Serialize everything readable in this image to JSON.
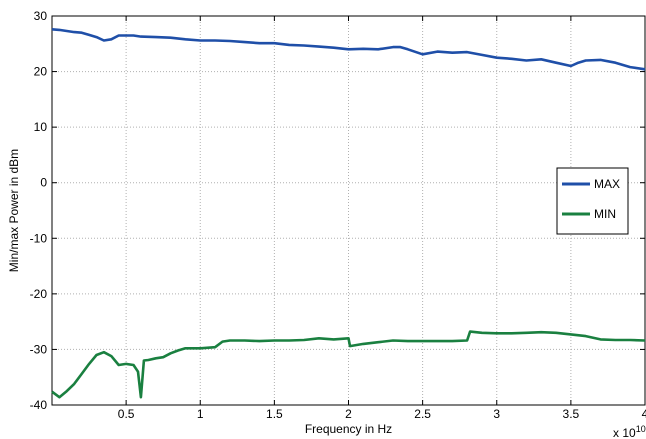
{
  "chart_data": {
    "type": "line",
    "xlabel": "Frequency in Hz",
    "ylabel": "Min/max Power in dBm",
    "x_exponent_label": "x 10",
    "x_exponent_power": "10",
    "xlim": [
      0,
      4
    ],
    "ylim": [
      -40,
      30
    ],
    "xticks": [
      0.5,
      1,
      1.5,
      2,
      2.5,
      3,
      3.5,
      4
    ],
    "xtick_labels": [
      "0.5",
      "1",
      "1.5",
      "2",
      "2.5",
      "3",
      "3.5",
      "4"
    ],
    "yticks": [
      -40,
      -30,
      -20,
      -10,
      0,
      10,
      20,
      30
    ],
    "ytick_labels": [
      "-40",
      "-30",
      "-20",
      "-10",
      "0",
      "10",
      "20",
      "30"
    ],
    "grid": true,
    "legend_position": "right",
    "series": [
      {
        "name": "MAX",
        "color": "#1f4fa8",
        "x": [
          0.0,
          0.05,
          0.1,
          0.15,
          0.2,
          0.25,
          0.3,
          0.35,
          0.4,
          0.45,
          0.5,
          0.55,
          0.6,
          0.7,
          0.8,
          0.9,
          1.0,
          1.1,
          1.2,
          1.3,
          1.4,
          1.5,
          1.6,
          1.7,
          1.8,
          1.9,
          2.0,
          2.1,
          2.2,
          2.3,
          2.35,
          2.4,
          2.5,
          2.6,
          2.7,
          2.8,
          2.9,
          3.0,
          3.1,
          3.2,
          3.3,
          3.4,
          3.5,
          3.55,
          3.6,
          3.7,
          3.8,
          3.9,
          4.0
        ],
        "y": [
          27.6,
          27.5,
          27.3,
          27.1,
          27.0,
          26.6,
          26.2,
          25.6,
          25.8,
          26.5,
          26.5,
          26.5,
          26.3,
          26.2,
          26.1,
          25.8,
          25.6,
          25.6,
          25.5,
          25.3,
          25.1,
          25.1,
          24.8,
          24.7,
          24.5,
          24.3,
          24.0,
          24.1,
          24.0,
          24.4,
          24.4,
          24.0,
          23.1,
          23.6,
          23.4,
          23.5,
          23.0,
          22.5,
          22.3,
          22.0,
          22.2,
          21.6,
          21.0,
          21.6,
          22.0,
          22.1,
          21.6,
          20.8,
          20.4
        ]
      },
      {
        "name": "MIN",
        "color": "#1a8040",
        "x": [
          0.0,
          0.05,
          0.1,
          0.15,
          0.2,
          0.25,
          0.3,
          0.35,
          0.4,
          0.45,
          0.5,
          0.55,
          0.58,
          0.6,
          0.62,
          0.65,
          0.7,
          0.75,
          0.8,
          0.85,
          0.9,
          1.0,
          1.1,
          1.15,
          1.2,
          1.3,
          1.4,
          1.5,
          1.6,
          1.7,
          1.8,
          1.9,
          2.0,
          2.01,
          2.1,
          2.2,
          2.3,
          2.4,
          2.5,
          2.6,
          2.7,
          2.8,
          2.82,
          2.9,
          3.0,
          3.1,
          3.2,
          3.3,
          3.4,
          3.5,
          3.6,
          3.7,
          3.8,
          3.9,
          4.0
        ],
        "y": [
          -37.6,
          -38.6,
          -37.5,
          -36.2,
          -34.4,
          -32.6,
          -31.0,
          -30.5,
          -31.2,
          -32.8,
          -32.6,
          -32.8,
          -34.0,
          -38.6,
          -32.0,
          -31.9,
          -31.6,
          -31.4,
          -30.7,
          -30.2,
          -29.8,
          -29.8,
          -29.6,
          -28.6,
          -28.4,
          -28.4,
          -28.5,
          -28.4,
          -28.4,
          -28.3,
          -28.0,
          -28.2,
          -28.0,
          -29.4,
          -29.0,
          -28.7,
          -28.4,
          -28.5,
          -28.5,
          -28.5,
          -28.5,
          -28.4,
          -26.8,
          -27.0,
          -27.1,
          -27.1,
          -27.0,
          -26.9,
          -27.0,
          -27.3,
          -27.6,
          -28.2,
          -28.3,
          -28.3,
          -28.4
        ]
      }
    ]
  }
}
